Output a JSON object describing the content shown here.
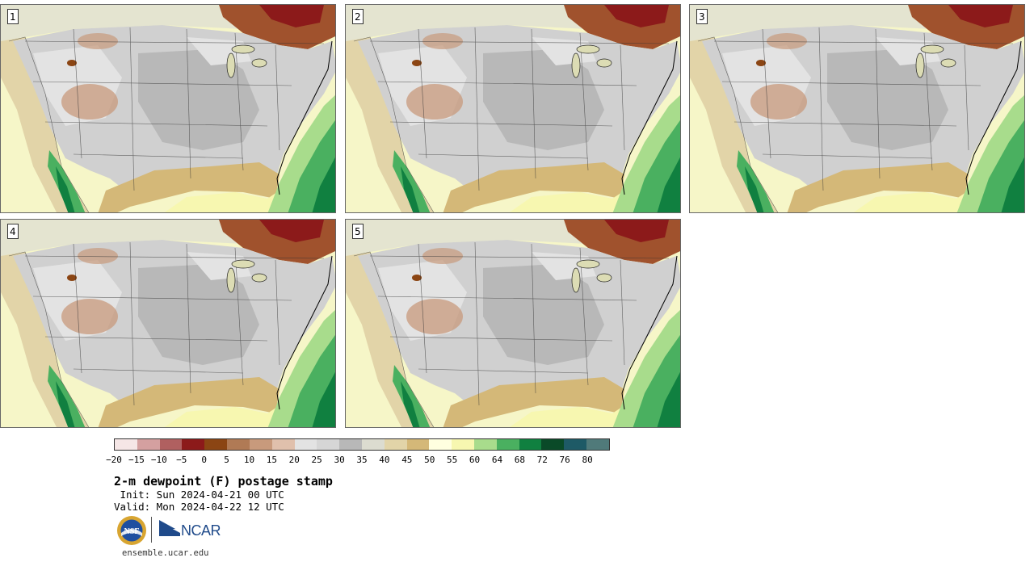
{
  "panels": [
    {
      "label": "1"
    },
    {
      "label": "2"
    },
    {
      "label": "3"
    },
    {
      "label": "4"
    },
    {
      "label": "5"
    }
  ],
  "colorbar": {
    "colors": [
      "#f5e6e6",
      "#d4a0a0",
      "#b06060",
      "#8c1a1a",
      "#8b4513",
      "#b07a55",
      "#c89a7c",
      "#e0c0ac",
      "#e3e3e3",
      "#d6d6d6",
      "#b8b8b8",
      "#dcdcd0",
      "#e2d4a8",
      "#d4b878",
      "#ffffe0",
      "#f7f7b0",
      "#a8dc8c",
      "#4ab060",
      "#108040",
      "#0a4a28",
      "#1e5a66",
      "#507a7a"
    ],
    "ticks": [
      "−20",
      "−15",
      "−10",
      "−5",
      "0",
      "5",
      "10",
      "15",
      "20",
      "25",
      "30",
      "35",
      "40",
      "45",
      "50",
      "55",
      "60",
      "64",
      "68",
      "72",
      "76",
      "80"
    ]
  },
  "title": "2-m dewpoint (F) postage stamp",
  "init": " Init: Sun 2024-04-21 00 UTC",
  "valid": "Valid: Mon 2024-04-22 12 UTC",
  "logos": {
    "nsf": "NSF",
    "ncar": "NCAR"
  },
  "url": "ensemble.ucar.edu"
}
